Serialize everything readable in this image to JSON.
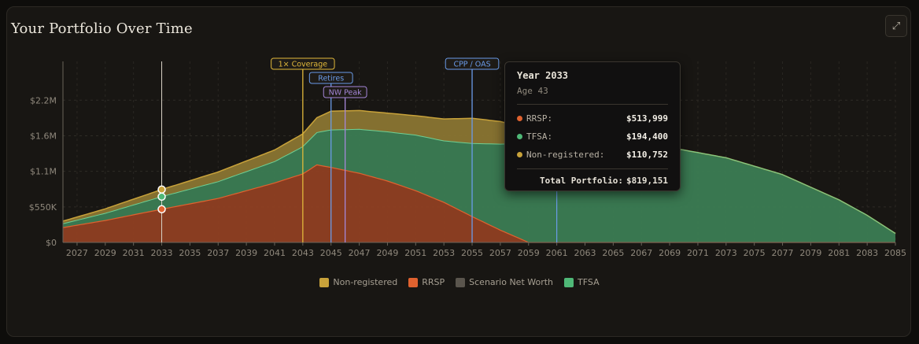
{
  "title": "Your Portfolio Over Time",
  "expand_icon": "expand-arrows-icon",
  "expand_glyph": "⤢",
  "colors": {
    "rrsp": "#e0622f",
    "tfsa": "#4fb877",
    "nonreg": "#c8a23a",
    "networth": "#5a554d",
    "coverage": "#e2b93b",
    "retires": "#6a9be8",
    "nwpeak": "#a587d9",
    "cpp": "#6a9be8"
  },
  "tooltip": {
    "year": "Year 2033",
    "age": "Age 43",
    "rows": [
      {
        "label": "RRSP:",
        "value": "$513,999",
        "color": "#e0622f"
      },
      {
        "label": "TFSA:",
        "value": "$194,400",
        "color": "#4fb877"
      },
      {
        "label": "Non-registered:",
        "value": "$110,752",
        "color": "#c8a23a"
      }
    ],
    "total_label": "Total Portfolio:",
    "total_value": "$819,151"
  },
  "chart_data": {
    "type": "area",
    "stacked": true,
    "x_ticks": [
      "2027",
      "2029",
      "2031",
      "2033",
      "2035",
      "2037",
      "2039",
      "2041",
      "2043",
      "2045",
      "2047",
      "2049",
      "2051",
      "2053",
      "2055",
      "2057",
      "2059",
      "2061",
      "2063",
      "2065",
      "2067",
      "2069",
      "2071",
      "2073",
      "2075",
      "2077",
      "2079",
      "2081",
      "2083",
      "2085"
    ],
    "y_ticks": [
      {
        "value": 0,
        "label": "$0"
      },
      {
        "value": 550000,
        "label": "$550K"
      },
      {
        "value": 1100000,
        "label": "$1.1M"
      },
      {
        "value": 1650000,
        "label": "$1.6M"
      },
      {
        "value": 2200000,
        "label": "$2.2M"
      }
    ],
    "xlim": [
      2026,
      2085
    ],
    "ylim": [
      0,
      2800000
    ],
    "series": [
      {
        "name": "RRSP",
        "color": "#e0622f",
        "points": [
          [
            2026,
            230000
          ],
          [
            2029,
            340000
          ],
          [
            2033,
            514000
          ],
          [
            2037,
            680000
          ],
          [
            2041,
            920000
          ],
          [
            2043,
            1060000
          ],
          [
            2044,
            1200000
          ],
          [
            2045,
            1160000
          ],
          [
            2047,
            1070000
          ],
          [
            2049,
            950000
          ],
          [
            2051,
            800000
          ],
          [
            2053,
            620000
          ],
          [
            2055,
            400000
          ],
          [
            2057,
            190000
          ],
          [
            2059,
            0
          ],
          [
            2085,
            0
          ]
        ]
      },
      {
        "name": "TFSA",
        "color": "#4fb877",
        "points": [
          [
            2026,
            60000
          ],
          [
            2029,
            110000
          ],
          [
            2033,
            194400
          ],
          [
            2037,
            260000
          ],
          [
            2041,
            330000
          ],
          [
            2043,
            420000
          ],
          [
            2044,
            500000
          ],
          [
            2045,
            580000
          ],
          [
            2047,
            680000
          ],
          [
            2049,
            760000
          ],
          [
            2051,
            860000
          ],
          [
            2053,
            950000
          ],
          [
            2055,
            1130000
          ],
          [
            2057,
            1330000
          ],
          [
            2059,
            1530000
          ],
          [
            2061,
            1620000
          ],
          [
            2065,
            1540000
          ],
          [
            2069,
            1470000
          ],
          [
            2073,
            1310000
          ],
          [
            2077,
            1050000
          ],
          [
            2081,
            660000
          ],
          [
            2083,
            420000
          ],
          [
            2085,
            140000
          ]
        ]
      },
      {
        "name": "Non-registered",
        "color": "#c8a23a",
        "points": [
          [
            2026,
            40000
          ],
          [
            2029,
            70000
          ],
          [
            2033,
            110752
          ],
          [
            2037,
            150000
          ],
          [
            2041,
            180000
          ],
          [
            2043,
            200000
          ],
          [
            2044,
            230000
          ],
          [
            2045,
            290000
          ],
          [
            2047,
            290000
          ],
          [
            2049,
            290000
          ],
          [
            2051,
            300000
          ],
          [
            2053,
            340000
          ],
          [
            2055,
            390000
          ],
          [
            2057,
            350000
          ],
          [
            2059,
            230000
          ],
          [
            2061,
            120000
          ],
          [
            2063,
            0
          ],
          [
            2085,
            0
          ]
        ]
      }
    ],
    "legend": [
      {
        "name": "Non-registered",
        "color": "#c8a23a"
      },
      {
        "name": "RRSP",
        "color": "#e0622f"
      },
      {
        "name": "Scenario Net Worth",
        "color": "#5a554d"
      },
      {
        "name": "TFSA",
        "color": "#4fb877"
      }
    ],
    "markers": [
      {
        "label": "1× Coverage",
        "x": 2043,
        "color": "#e2b93b",
        "row": 0
      },
      {
        "label": "Retires",
        "x": 2045,
        "color": "#6a9be8",
        "row": 1
      },
      {
        "label": "NW Peak",
        "x": 2046,
        "color": "#a587d9",
        "row": 2
      },
      {
        "label": "CPP / OAS",
        "x": 2055,
        "color": "#6a9be8",
        "row": 0
      }
    ],
    "extra_line_x": 2061,
    "hover_x": 2033,
    "grid": true,
    "legend_position": "bottom"
  }
}
